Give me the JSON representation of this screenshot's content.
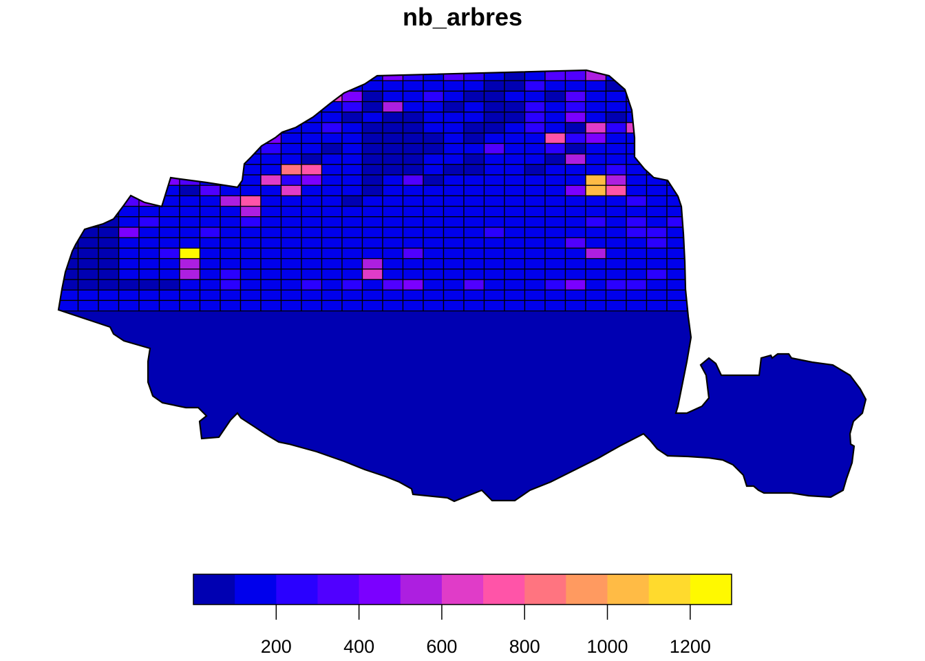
{
  "chart_data": {
    "type": "heatmap",
    "title": "nb_arbres",
    "legend": {
      "placement": "bottom",
      "breaks": [
        0,
        100,
        200,
        300,
        400,
        500,
        600,
        700,
        800,
        900,
        1000,
        1100,
        1200,
        1300
      ],
      "colors": [
        "#0000B2",
        "#0000EC",
        "#2A00FF",
        "#5000FF",
        "#7B00FF",
        "#AD1FE0",
        "#E03CC8",
        "#FF54A8",
        "#FF7480",
        "#FF9A60",
        "#FFBB45",
        "#FFDA2D",
        "#FFF900"
      ],
      "ticks": [
        200,
        400,
        600,
        800,
        1000,
        1200
      ],
      "tick_labels": [
        "200",
        "400",
        "600",
        "800",
        "1000",
        "1200"
      ]
    },
    "grid": {
      "rows": 21,
      "cols": 40,
      "outside_cells_drawn": false,
      "cell_values": [
        [
          0,
          0,
          0,
          0,
          0,
          0,
          0,
          0,
          0,
          0,
          0,
          0,
          0,
          0,
          0,
          150,
          500,
          250,
          200,
          350,
          250,
          150,
          100,
          150,
          350,
          400,
          550,
          200,
          250,
          150,
          50,
          0,
          0,
          0,
          0,
          0,
          0,
          0,
          0,
          0
        ],
        [
          0,
          0,
          0,
          0,
          0,
          0,
          0,
          0,
          0,
          0,
          0,
          0,
          0,
          300,
          200,
          150,
          200,
          150,
          200,
          150,
          200,
          100,
          100,
          300,
          200,
          200,
          150,
          100,
          150,
          100,
          0,
          0,
          0,
          0,
          0,
          0,
          0,
          0,
          0,
          0
        ],
        [
          0,
          0,
          0,
          0,
          0,
          0,
          0,
          0,
          0,
          0,
          0,
          250,
          150,
          700,
          450,
          100,
          150,
          200,
          300,
          150,
          100,
          100,
          150,
          200,
          100,
          400,
          150,
          150,
          250,
          100,
          0,
          0,
          0,
          0,
          0,
          0,
          0,
          0,
          0,
          0
        ],
        [
          0,
          0,
          0,
          0,
          0,
          0,
          0,
          0,
          0,
          200,
          150,
          150,
          200,
          200,
          250,
          100,
          600,
          200,
          150,
          100,
          150,
          100,
          100,
          250,
          200,
          300,
          150,
          200,
          150,
          0,
          0,
          0,
          0,
          0,
          0,
          0,
          0,
          0,
          0,
          0
        ],
        [
          0,
          0,
          0,
          0,
          0,
          0,
          0,
          0,
          300,
          250,
          100,
          150,
          150,
          150,
          100,
          150,
          100,
          100,
          150,
          200,
          150,
          50,
          100,
          250,
          200,
          450,
          150,
          100,
          200,
          0,
          0,
          0,
          0,
          0,
          0,
          0,
          0,
          0,
          0,
          0
        ],
        [
          0,
          0,
          0,
          0,
          0,
          0,
          0,
          0,
          150,
          100,
          150,
          200,
          150,
          250,
          150,
          100,
          50,
          100,
          150,
          200,
          100,
          50,
          150,
          300,
          150,
          100,
          700,
          250,
          650,
          150,
          0,
          0,
          0,
          0,
          0,
          0,
          0,
          0,
          0,
          0
        ],
        [
          0,
          0,
          0,
          0,
          0,
          0,
          150,
          200,
          150,
          250,
          450,
          200,
          150,
          150,
          200,
          100,
          100,
          50,
          100,
          150,
          100,
          200,
          150,
          150,
          800,
          250,
          450,
          150,
          200,
          250,
          150,
          0,
          0,
          0,
          0,
          0,
          0,
          0,
          0,
          0
        ],
        [
          0,
          0,
          0,
          0,
          0,
          150,
          200,
          150,
          350,
          200,
          250,
          200,
          150,
          100,
          150,
          100,
          100,
          50,
          100,
          150,
          150,
          400,
          150,
          200,
          300,
          100,
          150,
          150,
          150,
          200,
          150,
          0,
          0,
          0,
          0,
          0,
          0,
          0,
          0,
          0
        ],
        [
          0,
          0,
          0,
          0,
          150,
          150,
          200,
          200,
          150,
          200,
          150,
          150,
          100,
          200,
          150,
          100,
          100,
          100,
          150,
          150,
          100,
          200,
          150,
          150,
          100,
          550,
          200,
          150,
          200,
          250,
          450,
          0,
          0,
          0,
          0,
          0,
          0,
          0,
          0,
          0
        ],
        [
          0,
          0,
          0,
          0,
          150,
          200,
          150,
          250,
          200,
          200,
          150,
          850,
          750,
          150,
          150,
          100,
          100,
          100,
          150,
          100,
          100,
          200,
          150,
          100,
          150,
          200,
          150,
          250,
          200,
          150,
          200,
          0,
          0,
          0,
          0,
          0,
          0,
          0,
          0,
          0
        ],
        [
          0,
          0,
          0,
          0,
          350,
          450,
          350,
          200,
          350,
          150,
          650,
          300,
          500,
          150,
          150,
          100,
          150,
          400,
          100,
          150,
          200,
          150,
          150,
          150,
          150,
          200,
          1100,
          550,
          150,
          200,
          200,
          0,
          0,
          0,
          0,
          0,
          0,
          0,
          0,
          0
        ],
        [
          0,
          0,
          0,
          350,
          700,
          150,
          100,
          350,
          150,
          150,
          200,
          700,
          150,
          150,
          150,
          100,
          150,
          200,
          150,
          200,
          150,
          150,
          150,
          200,
          200,
          450,
          1100,
          750,
          200,
          150,
          200,
          0,
          0,
          0,
          0,
          0,
          0,
          0,
          0,
          0
        ],
        [
          0,
          0,
          0,
          400,
          450,
          200,
          150,
          200,
          550,
          750,
          200,
          150,
          200,
          150,
          100,
          150,
          200,
          150,
          150,
          200,
          150,
          150,
          200,
          200,
          150,
          200,
          200,
          200,
          250,
          150,
          150,
          0,
          0,
          0,
          0,
          0,
          0,
          0,
          0,
          0
        ],
        [
          0,
          0,
          0,
          200,
          150,
          200,
          150,
          200,
          200,
          600,
          200,
          150,
          150,
          150,
          150,
          200,
          150,
          150,
          150,
          200,
          150,
          200,
          200,
          150,
          200,
          200,
          150,
          200,
          200,
          150,
          150,
          0,
          0,
          0,
          0,
          0,
          0,
          0,
          0,
          0
        ],
        [
          0,
          0,
          0,
          200,
          300,
          150,
          200,
          150,
          200,
          250,
          150,
          200,
          150,
          150,
          200,
          150,
          150,
          150,
          200,
          150,
          200,
          150,
          150,
          200,
          150,
          200,
          250,
          200,
          250,
          200,
          300,
          0,
          0,
          0,
          0,
          0,
          0,
          0,
          0,
          0
        ],
        [
          0,
          0,
          0,
          450,
          150,
          200,
          200,
          250,
          150,
          200,
          150,
          200,
          150,
          150,
          150,
          150,
          150,
          150,
          150,
          200,
          150,
          250,
          200,
          200,
          150,
          200,
          200,
          200,
          250,
          300,
          200,
          0,
          0,
          0,
          0,
          0,
          0,
          0,
          0,
          0
        ],
        [
          0,
          0,
          0,
          150,
          200,
          150,
          200,
          200,
          150,
          150,
          200,
          150,
          150,
          150,
          150,
          200,
          150,
          150,
          150,
          200,
          200,
          150,
          200,
          150,
          200,
          350,
          200,
          200,
          200,
          250,
          150,
          0,
          0,
          0,
          0,
          0,
          0,
          0,
          0,
          0
        ],
        [
          0,
          0,
          0,
          150,
          200,
          250,
          1300,
          200,
          150,
          150,
          150,
          200,
          150,
          150,
          200,
          150,
          200,
          350,
          200,
          150,
          200,
          200,
          150,
          150,
          200,
          150,
          600,
          200,
          150,
          200,
          150,
          0,
          0,
          0,
          0,
          0,
          0,
          0,
          0,
          0
        ],
        [
          0,
          0,
          0,
          200,
          150,
          200,
          600,
          200,
          200,
          200,
          150,
          200,
          150,
          200,
          200,
          550,
          150,
          150,
          150,
          150,
          150,
          200,
          150,
          200,
          150,
          200,
          200,
          200,
          200,
          150,
          150,
          0,
          0,
          0,
          0,
          0,
          0,
          0,
          0,
          0
        ],
        [
          0,
          0,
          0,
          200,
          200,
          200,
          600,
          200,
          250,
          150,
          200,
          200,
          200,
          150,
          200,
          700,
          200,
          200,
          150,
          200,
          200,
          200,
          200,
          200,
          200,
          150,
          200,
          150,
          200,
          250,
          200,
          0,
          0,
          0,
          0,
          0,
          0,
          0,
          0,
          0
        ],
        [
          0,
          0,
          0,
          0,
          0,
          0,
          200,
          200,
          250,
          200,
          150,
          150,
          250,
          200,
          250,
          150,
          400,
          500,
          150,
          200,
          400,
          150,
          200,
          200,
          250,
          500,
          200,
          250,
          300,
          200,
          150,
          0,
          0,
          0,
          0,
          0,
          0,
          0,
          0,
          0
        ]
      ]
    }
  }
}
